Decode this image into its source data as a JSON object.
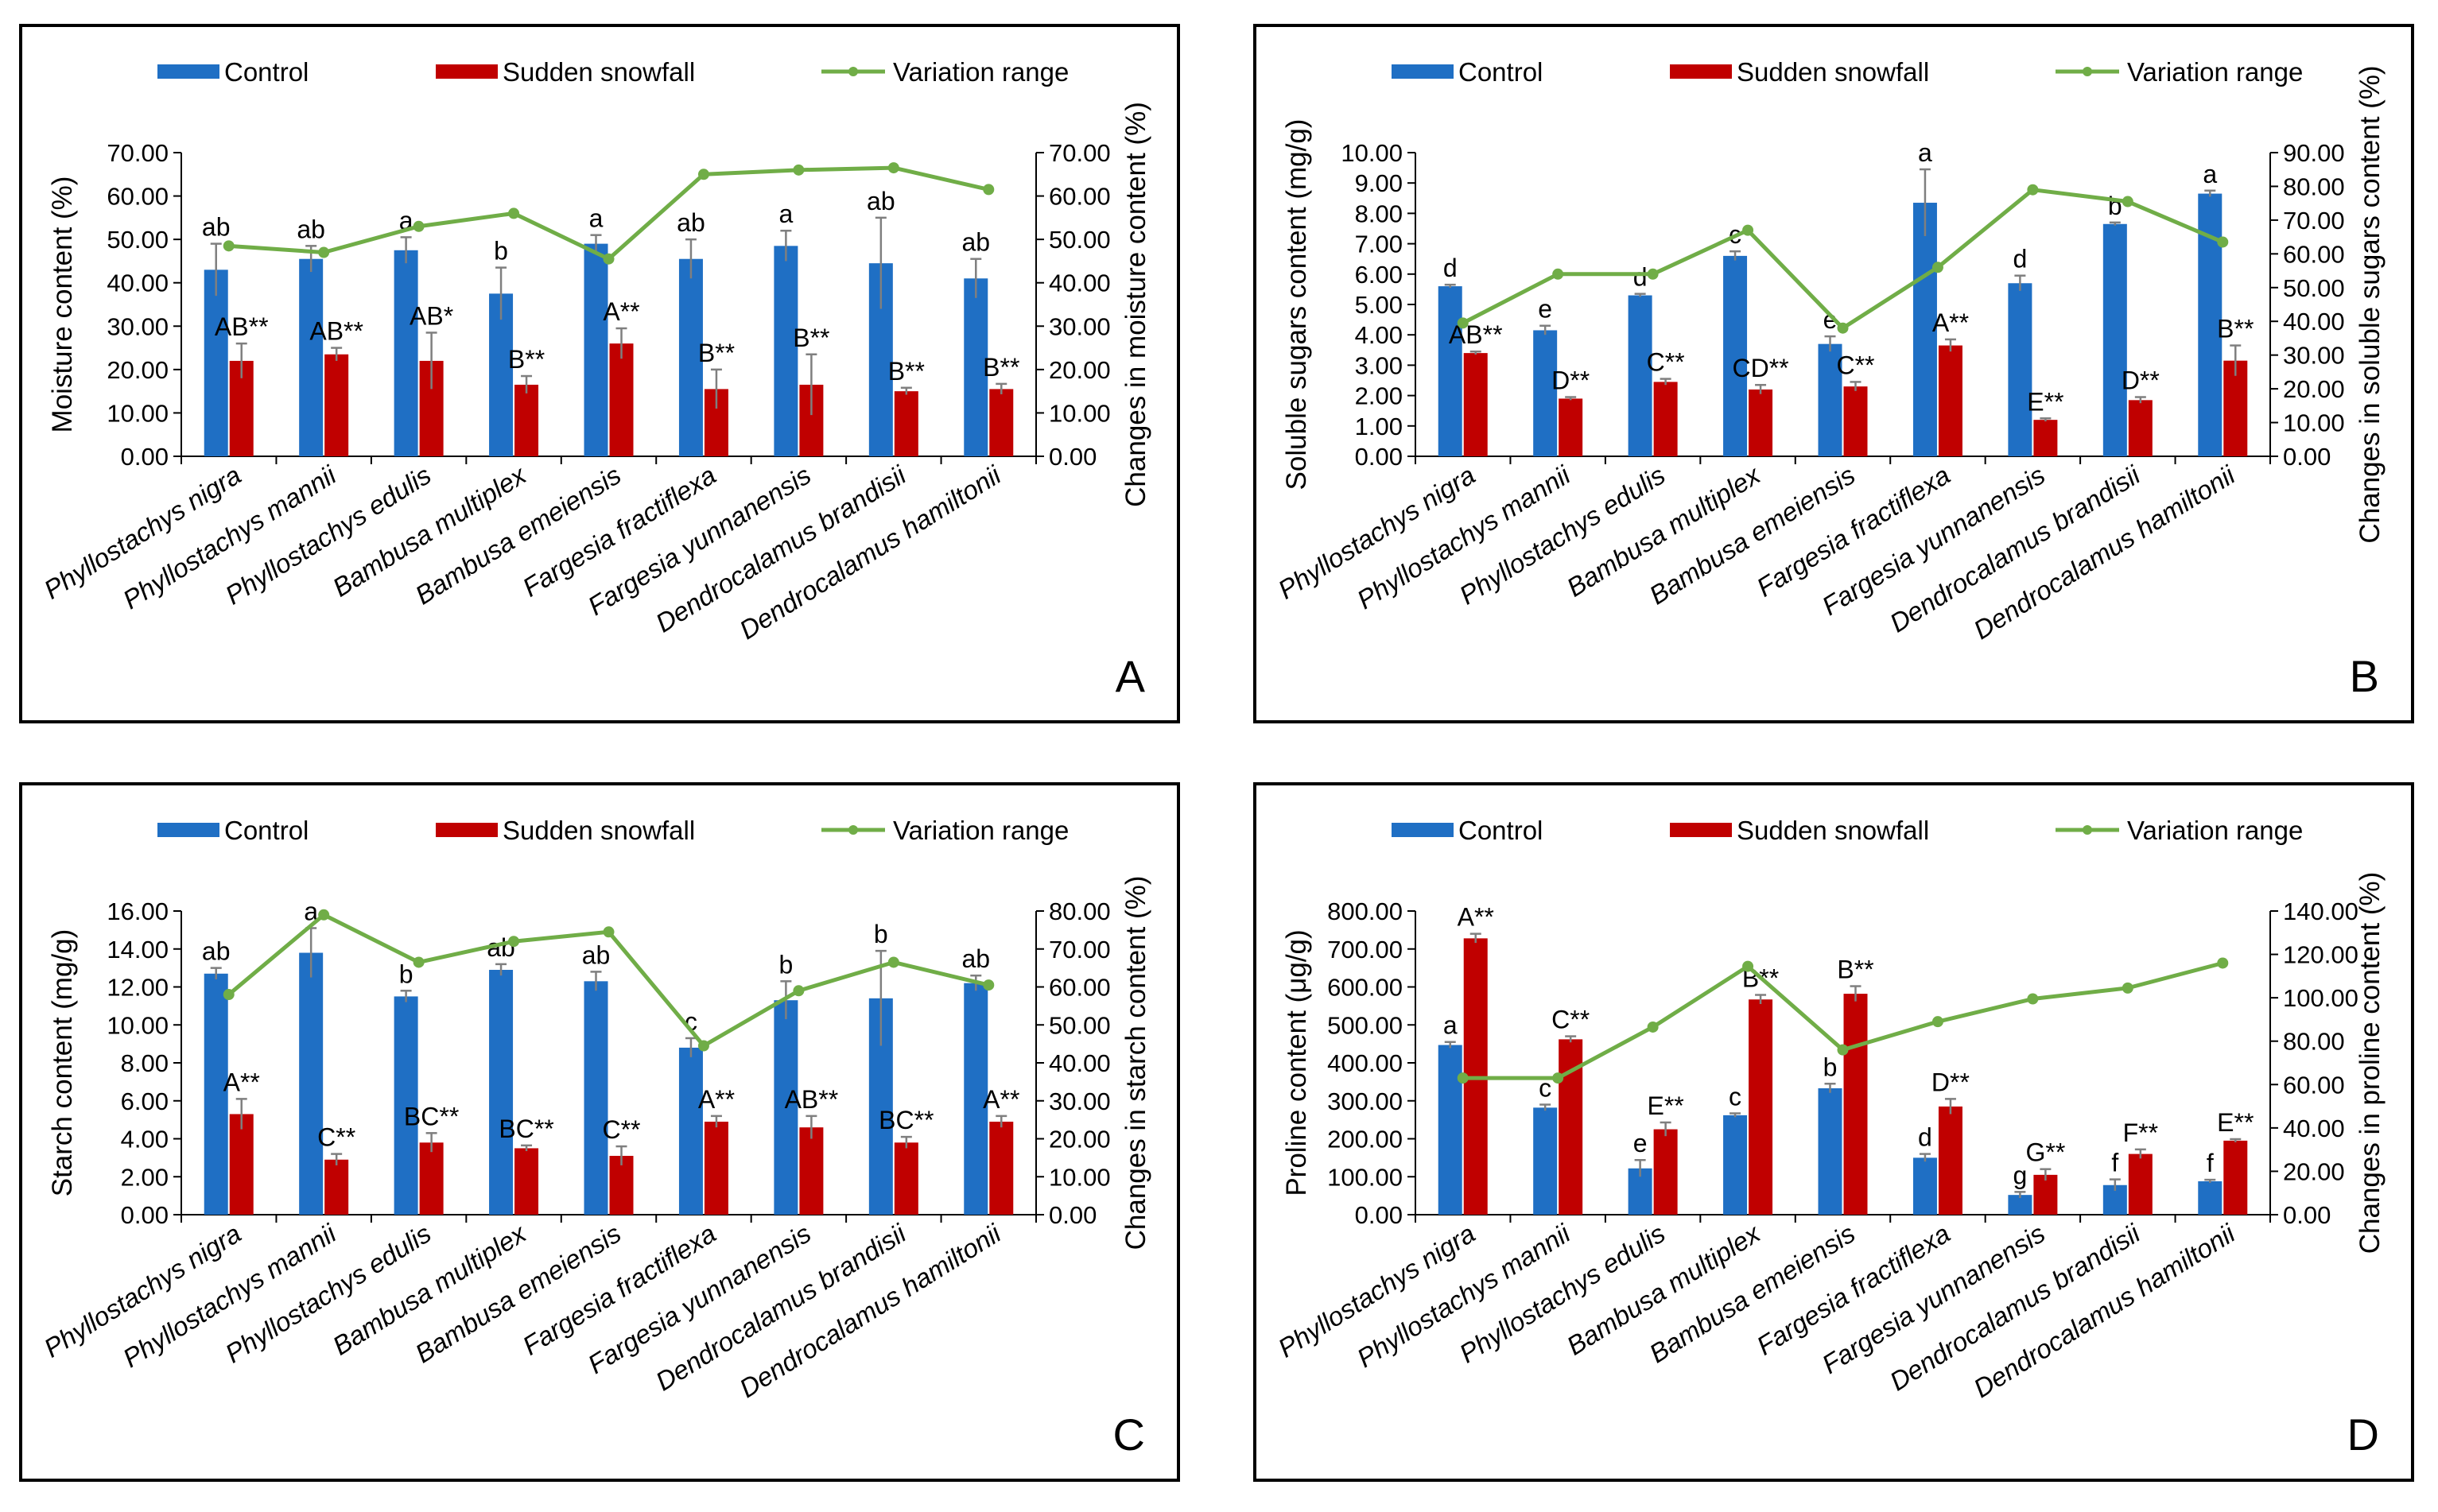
{
  "legend": {
    "control": "Control",
    "snow": "Sudden snowfall",
    "range": "Variation range"
  },
  "colors": {
    "control": "#1f6fc4",
    "snow": "#c00000",
    "range": "#70ad47",
    "error": "#7f7f7f",
    "axis": "#000000"
  },
  "chart_data": [
    {
      "type": "bar",
      "panel": "A",
      "ylabel": "Moisture content (%)",
      "y2label": "Changes in moisture content (%)",
      "ylim": [
        0,
        70
      ],
      "ystep": 10,
      "y2lim": [
        0,
        70
      ],
      "y2step": 10,
      "categories": [
        "Phyllostachys nigra",
        "Phyllostachys mannii",
        "Phyllostachys edulis",
        "Bambusa multiplex",
        "Bambusa  emeiensis",
        "Fargesia fractiflexa",
        "Fargesia yunnanensis",
        "Dendrocalamus brandisii",
        "Dendrocalamus hamiltonii"
      ],
      "series": [
        {
          "name": "Control",
          "values": [
            43,
            45.5,
            47.5,
            37.5,
            49,
            45.5,
            48.5,
            44.5,
            41
          ],
          "errors": [
            6,
            3,
            3,
            6,
            2,
            4.5,
            3.5,
            10.5,
            4.5
          ],
          "labels": [
            "ab",
            "ab",
            "a",
            "b",
            "a",
            "ab",
            "a",
            "ab",
            "ab"
          ]
        },
        {
          "name": "Sudden snowfall",
          "values": [
            22,
            23.5,
            22,
            16.5,
            26,
            15.5,
            16.5,
            15,
            15.5
          ],
          "errors": [
            4,
            1.5,
            6.5,
            2,
            3.5,
            4.5,
            7,
            0.8,
            1.2
          ],
          "labels": [
            "AB**",
            "AB**",
            "AB*",
            "B**",
            "A**",
            "B**",
            "B**",
            "B**",
            "B**"
          ]
        }
      ],
      "range": [
        48.5,
        47,
        53,
        56,
        45.5,
        65,
        66,
        66.5,
        61.5
      ]
    },
    {
      "type": "bar",
      "panel": "B",
      "ylabel": "Soluble sugars content (mg/g)",
      "y2label": "Changes in soluble sugars content (%)",
      "ylim": [
        0,
        10
      ],
      "ystep": 1,
      "y2lim": [
        0,
        90
      ],
      "y2step": 10,
      "categories": [
        "Phyllostachys nigra",
        "Phyllostachys mannii",
        "Phyllostachys edulis",
        "Bambusa multiplex",
        "Bambusa  emeiensis",
        "Fargesia fractiflexa",
        "Fargesia yunnanensis",
        "Dendrocalamus brandisii",
        "Dendrocalamus hamiltonii"
      ],
      "series": [
        {
          "name": "Control",
          "values": [
            5.6,
            4.15,
            5.3,
            6.6,
            3.7,
            8.35,
            5.7,
            7.65,
            8.65
          ],
          "errors": [
            0.05,
            0.15,
            0.05,
            0.15,
            0.25,
            1.1,
            0.25,
            0.05,
            0.1
          ],
          "labels": [
            "d",
            "e",
            "d",
            "c",
            "e",
            "a",
            "d",
            "b",
            "a"
          ]
        },
        {
          "name": "Sudden snowfall",
          "values": [
            3.4,
            1.9,
            2.45,
            2.2,
            2.3,
            3.65,
            1.2,
            1.85,
            3.15
          ],
          "errors": [
            0.05,
            0.05,
            0.1,
            0.15,
            0.15,
            0.2,
            0.05,
            0.1,
            0.5
          ],
          "labels": [
            "AB**",
            "D**",
            "C**",
            "CD**",
            "C**",
            "A**",
            "E**",
            "D**",
            "B**"
          ]
        }
      ],
      "range": [
        39.5,
        54,
        54,
        67,
        38,
        56,
        79,
        75.5,
        63.5
      ]
    },
    {
      "type": "bar",
      "panel": "C",
      "ylabel": "Starch content (mg/g)",
      "y2label": "Changes in starch content (%)",
      "ylim": [
        0,
        16
      ],
      "ystep": 2,
      "y2lim": [
        0,
        80
      ],
      "y2step": 10,
      "categories": [
        "Phyllostachys nigra",
        "Phyllostachys mannii",
        "Phyllostachys edulis",
        "Bambusa multiplex",
        "Bambusa  emeiensis",
        "Fargesia fractiflexa",
        "Fargesia yunnanensis",
        "Dendrocalamus brandisii",
        "Dendrocalamus hamiltonii"
      ],
      "series": [
        {
          "name": "Control",
          "values": [
            12.7,
            13.8,
            11.5,
            12.9,
            12.3,
            8.8,
            11.3,
            11.4,
            12.2
          ],
          "errors": [
            0.3,
            1.3,
            0.3,
            0.3,
            0.5,
            0.5,
            1.0,
            2.5,
            0.4
          ],
          "labels": [
            "ab",
            "a",
            "b",
            "ab",
            "ab",
            "c",
            "b",
            "b",
            "ab"
          ]
        },
        {
          "name": "Sudden snowfall",
          "values": [
            5.3,
            2.9,
            3.8,
            3.5,
            3.1,
            4.9,
            4.6,
            3.8,
            4.9
          ],
          "errors": [
            0.8,
            0.3,
            0.5,
            0.15,
            0.5,
            0.3,
            0.6,
            0.3,
            0.3
          ],
          "labels": [
            "A**",
            "C**",
            "BC**",
            "BC**",
            "C**",
            "A**",
            "AB**",
            "BC**",
            "A**"
          ]
        }
      ],
      "range": [
        58,
        79,
        66.5,
        72,
        74.5,
        44.5,
        59,
        66.5,
        60.5
      ]
    },
    {
      "type": "bar",
      "panel": "D",
      "ylabel": "Proline content (μg/g)",
      "y2label": "Changes in proline content (%)",
      "ylim": [
        0,
        800
      ],
      "ystep": 100,
      "y2lim": [
        0,
        140
      ],
      "y2step": 20,
      "categories": [
        "Phyllostachys nigra",
        "Phyllostachys mannii",
        "Phyllostachys edulis",
        "Bambusa multiplex",
        "Bambusa  emeiensis",
        "Fargesia fractiflexa",
        "Fargesia yunnanensis",
        "Dendrocalamus brandisii",
        "Dendrocalamus hamiltonii"
      ],
      "series": [
        {
          "name": "Control",
          "values": [
            447,
            282,
            122,
            262,
            333,
            150,
            52,
            78,
            88
          ],
          "errors": [
            8,
            8,
            22,
            5,
            12,
            10,
            8,
            15,
            4
          ],
          "labels": [
            "a",
            "c",
            "e",
            "c",
            "b",
            "d",
            "g",
            "f",
            "f"
          ]
        },
        {
          "name": "Sudden snowfall",
          "values": [
            728,
            462,
            225,
            567,
            582,
            285,
            105,
            160,
            195
          ],
          "errors": [
            12,
            8,
            18,
            12,
            20,
            20,
            15,
            12,
            4
          ],
          "labels": [
            "A**",
            "C**",
            "E**",
            "B**",
            "B**",
            "D**",
            "G**",
            "F**",
            "E**"
          ]
        }
      ],
      "range": [
        63,
        63,
        86.5,
        114.5,
        76,
        89,
        99.5,
        104.5,
        116
      ]
    }
  ]
}
